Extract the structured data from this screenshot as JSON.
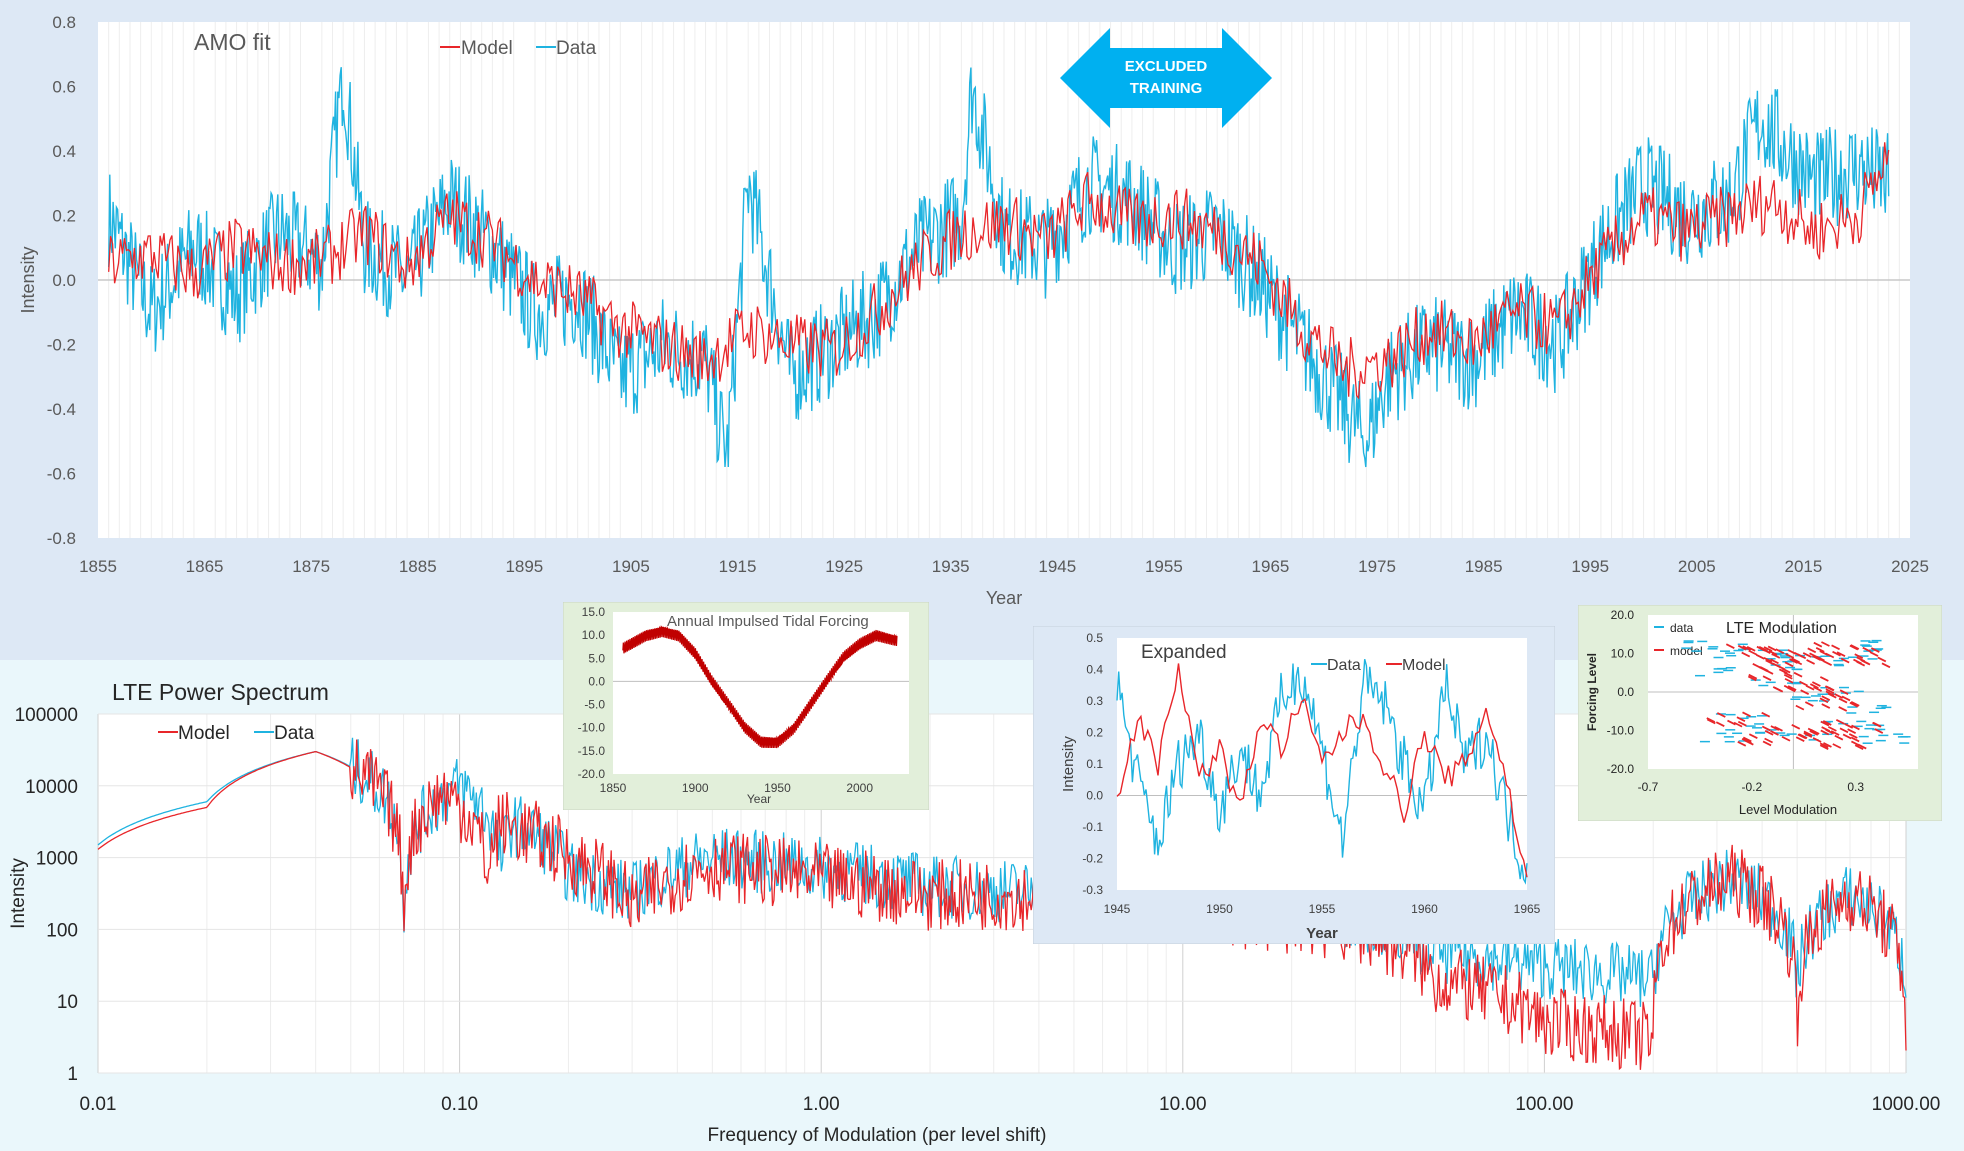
{
  "colors": {
    "model": "#e8262a",
    "data": "#1fb3e0",
    "forcing": "#c00000"
  },
  "excluded_label_1": "EXCLUDED",
  "excluded_label_2": "TRAINING",
  "chart_data": [
    {
      "id": "amo",
      "type": "line",
      "title": "AMO fit",
      "xlabel": "Year",
      "ylabel": "Intensity",
      "xlim": [
        1855,
        2025
      ],
      "ylim": [
        -0.8,
        0.8
      ],
      "xticks": [
        1855,
        1865,
        1875,
        1885,
        1895,
        1905,
        1915,
        1925,
        1935,
        1945,
        1955,
        1965,
        1975,
        1985,
        1995,
        2005,
        2015,
        2025
      ],
      "yticks": [
        -0.8,
        -0.6,
        -0.4,
        -0.2,
        0.0,
        0.2,
        0.4,
        0.6,
        0.8
      ],
      "legend": [
        "Model",
        "Data"
      ],
      "legend_position": "top-center",
      "series": [
        {
          "name": "Model",
          "x": [
            1856,
            1860,
            1864,
            1868,
            1872,
            1876,
            1880,
            1884,
            1888,
            1892,
            1896,
            1900,
            1904,
            1908,
            1912,
            1916,
            1920,
            1924,
            1928,
            1932,
            1936,
            1940,
            1944,
            1948,
            1952,
            1956,
            1960,
            1964,
            1968,
            1972,
            1976,
            1980,
            1984,
            1988,
            1992,
            1996,
            2000,
            2004,
            2008,
            2012,
            2016,
            2020,
            2023
          ],
          "y": [
            0.05,
            0.08,
            0.02,
            0.1,
            0.05,
            0.06,
            0.15,
            0.04,
            0.2,
            0.12,
            0.0,
            -0.05,
            -0.15,
            -0.2,
            -0.25,
            -0.15,
            -0.2,
            -0.22,
            -0.1,
            0.05,
            0.15,
            0.18,
            0.12,
            0.25,
            0.18,
            0.2,
            0.15,
            0.05,
            -0.15,
            -0.28,
            -0.25,
            -0.15,
            -0.2,
            -0.1,
            -0.15,
            0.05,
            0.2,
            0.15,
            0.2,
            0.25,
            0.15,
            0.2,
            0.38
          ]
        },
        {
          "name": "Data",
          "x": [
            1856,
            1860,
            1864,
            1868,
            1872,
            1876,
            1878,
            1880,
            1884,
            1888,
            1892,
            1896,
            1900,
            1904,
            1908,
            1912,
            1914,
            1916,
            1920,
            1924,
            1928,
            1932,
            1936,
            1937,
            1940,
            1944,
            1948,
            1952,
            1956,
            1960,
            1964,
            1968,
            1972,
            1974,
            1976,
            1980,
            1984,
            1988,
            1992,
            1996,
            2000,
            2004,
            2008,
            2011,
            2016,
            2020,
            2023
          ],
          "y": [
            0.2,
            -0.1,
            0.1,
            -0.05,
            0.15,
            0.05,
            0.65,
            0.1,
            0.0,
            0.25,
            0.1,
            -0.1,
            -0.05,
            -0.3,
            -0.2,
            -0.25,
            -0.55,
            0.3,
            -0.3,
            -0.2,
            -0.1,
            0.1,
            0.2,
            0.6,
            0.15,
            0.1,
            0.3,
            0.25,
            0.1,
            0.15,
            0.0,
            -0.2,
            -0.4,
            -0.5,
            -0.3,
            -0.2,
            -0.25,
            -0.1,
            -0.2,
            0.1,
            0.3,
            0.2,
            0.25,
            0.5,
            0.3,
            0.35,
            0.3
          ]
        }
      ]
    },
    {
      "id": "tidal",
      "type": "line",
      "title": "Annual Impulsed Tidal Forcing",
      "xlabel": "Year",
      "xlim": [
        1850,
        2030
      ],
      "ylim": [
        -20,
        15
      ],
      "xticks": [
        1850,
        1900,
        1950,
        2000
      ],
      "yticks": [
        -20.0,
        -15.0,
        -10.0,
        -5.0,
        0.0,
        5.0,
        10.0,
        15.0
      ],
      "series": [
        {
          "name": "",
          "x": [
            1856,
            1870,
            1880,
            1890,
            1900,
            1910,
            1920,
            1930,
            1940,
            1950,
            1960,
            1970,
            1980,
            1990,
            2000,
            2010,
            2023
          ],
          "y": [
            7,
            10,
            11,
            10,
            6,
            0,
            -5,
            -10,
            -13,
            -13,
            -10,
            -5,
            0,
            5,
            8,
            10,
            9
          ]
        }
      ]
    },
    {
      "id": "expanded",
      "type": "line",
      "title": "Expanded",
      "xlabel": "Year",
      "ylabel": "Intensity",
      "xlim": [
        1945,
        1965
      ],
      "ylim": [
        -0.3,
        0.5
      ],
      "xticks": [
        1945,
        1950,
        1955,
        1960,
        1965
      ],
      "yticks": [
        -0.3,
        -0.2,
        -0.1,
        0.0,
        0.1,
        0.2,
        0.3,
        0.4,
        0.5
      ],
      "legend": [
        "Data",
        "Model"
      ],
      "legend_position": "top-center",
      "series": [
        {
          "name": "Data",
          "x": [
            1945,
            1946,
            1947,
            1948,
            1949,
            1950,
            1951,
            1952,
            1953,
            1954,
            1955,
            1956,
            1957,
            1958,
            1959,
            1960,
            1961,
            1962,
            1963,
            1964,
            1965
          ],
          "y": [
            0.35,
            0.05,
            -0.15,
            0.1,
            0.2,
            -0.05,
            0.15,
            0.0,
            0.3,
            0.4,
            0.15,
            -0.15,
            0.35,
            0.3,
            0.1,
            -0.05,
            0.35,
            0.1,
            0.2,
            -0.05,
            -0.25
          ]
        },
        {
          "name": "Model",
          "x": [
            1945,
            1946,
            1947,
            1948,
            1949,
            1950,
            1951,
            1952,
            1953,
            1954,
            1955,
            1956,
            1957,
            1958,
            1959,
            1960,
            1961,
            1962,
            1963,
            1964,
            1965
          ],
          "y": [
            0.0,
            0.25,
            0.1,
            0.42,
            0.05,
            0.15,
            -0.05,
            0.25,
            0.15,
            0.3,
            0.1,
            0.2,
            0.25,
            0.1,
            -0.05,
            0.2,
            0.05,
            0.1,
            0.28,
            0.05,
            -0.28
          ]
        }
      ]
    },
    {
      "id": "lte_mod",
      "type": "scatter",
      "title": "LTE Modulation",
      "xlabel": "Level Modulation",
      "ylabel": "Forcing Level",
      "xlim": [
        -0.7,
        0.6
      ],
      "ylim": [
        -20,
        20
      ],
      "xticks": [
        -0.7,
        -0.2,
        0.3
      ],
      "yticks": [
        -20.0,
        -10.0,
        0.0,
        10.0,
        20.0
      ],
      "legend": [
        "data",
        "model"
      ],
      "legend_position": "top-left",
      "series": [
        {
          "name": "data",
          "x": [
            -0.45,
            -0.3,
            -0.15,
            0.0,
            0.15,
            0.3,
            0.45,
            -0.35,
            -0.2,
            0.05,
            0.25,
            0.4,
            -0.4,
            -0.1,
            0.1,
            0.35,
            -0.25,
            0.0,
            0.2,
            0.45
          ],
          "y": [
            12,
            10,
            11,
            9,
            8,
            10,
            12,
            -12,
            -10,
            -11,
            -9,
            -10,
            5,
            3,
            -2,
            -5,
            -7,
            7,
            0,
            -13
          ]
        },
        {
          "name": "model",
          "x": [
            -0.2,
            -0.05,
            0.1,
            0.25,
            0.3,
            -0.15,
            0.0,
            0.15,
            0.2,
            -0.1,
            0.05,
            0.18,
            -0.25,
            -0.05,
            0.12,
            0.28
          ],
          "y": [
            11,
            10,
            9,
            11,
            8,
            -12,
            -10,
            -11,
            -13,
            5,
            2,
            -3,
            -7,
            7,
            0,
            -9
          ]
        }
      ]
    },
    {
      "id": "power",
      "type": "line",
      "title": "LTE Power Spectrum",
      "xlabel": "Frequency of Modulation (per level shift)",
      "ylabel": "Intensity",
      "xscale": "log",
      "yscale": "log",
      "xlim": [
        0.01,
        1000
      ],
      "ylim": [
        1,
        100000
      ],
      "xticks": [
        "0.01",
        "0.10",
        "1.00",
        "10.00",
        "100.00",
        "1000.00"
      ],
      "yticks": [
        "1",
        "10",
        "100",
        "1000",
        "10000",
        "100000"
      ],
      "legend": [
        "Model",
        "Data"
      ],
      "legend_position": "top-left",
      "series": [
        {
          "name": "Model",
          "x": [
            0.01,
            0.02,
            0.04,
            0.06,
            0.07,
            0.09,
            0.12,
            0.13,
            0.2,
            0.3,
            0.5,
            1,
            2,
            5,
            10,
            30,
            50,
            100,
            200,
            330,
            500,
            700,
            1000
          ],
          "y": [
            1300,
            5000,
            30000,
            8000,
            100,
            8000,
            500,
            3000,
            1000,
            200,
            800,
            500,
            300,
            300,
            200,
            100,
            20,
            5,
            3,
            500,
            5,
            300,
            5
          ]
        },
        {
          "name": "Data",
          "x": [
            0.01,
            0.02,
            0.04,
            0.06,
            0.07,
            0.1,
            0.13,
            0.14,
            0.2,
            0.3,
            0.5,
            1,
            2,
            5,
            10,
            30,
            50,
            100,
            200,
            330,
            500,
            700,
            1000
          ],
          "y": [
            1500,
            6000,
            30000,
            9000,
            150,
            10000,
            800,
            3000,
            600,
            300,
            1000,
            700,
            400,
            300,
            250,
            150,
            50,
            30,
            20,
            500,
            20,
            300,
            20
          ]
        }
      ]
    }
  ]
}
